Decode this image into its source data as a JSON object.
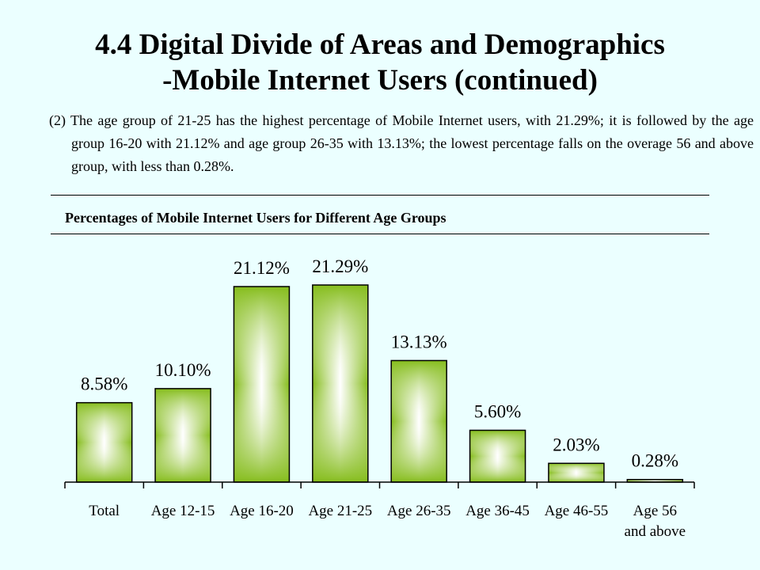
{
  "page": {
    "title_line1": "4.4 Digital Divide of Areas and Demographics",
    "title_line2": "-Mobile Internet Users (continued)",
    "description": "(2) The age group of 21-25 has the highest percentage of Mobile Internet users, with 21.29%; it is followed by the age group 16-20 with 21.12% and age group 26-35 with 13.13%; the lowest percentage falls on the overage 56 and above group, with less than 0.28%."
  },
  "chart_data": {
    "type": "bar",
    "title": "Percentages of Mobile Internet Users for Different Age Groups",
    "categories": [
      "Total",
      "Age 12-15",
      "Age 16-20",
      "Age 21-25",
      "Age 26-35",
      "Age 36-45",
      "Age 46-55",
      "Age 56 and above"
    ],
    "category_lines": [
      [
        "Total"
      ],
      [
        "Age 12-15"
      ],
      [
        "Age 16-20"
      ],
      [
        "Age 21-25"
      ],
      [
        "Age 26-35"
      ],
      [
        "Age 36-45"
      ],
      [
        "Age 46-55"
      ],
      [
        "Age 56",
        "and above"
      ]
    ],
    "values": [
      8.58,
      10.1,
      21.12,
      21.29,
      13.13,
      5.6,
      2.03,
      0.28
    ],
    "value_labels": [
      "8.58%",
      "10.10%",
      "21.12%",
      "21.29%",
      "13.13%",
      "5.60%",
      "2.03%",
      "0.28%"
    ],
    "xlabel": "",
    "ylabel": "",
    "ylim": [
      0,
      21.29
    ],
    "grid": false,
    "colors": {
      "bar_edge": "#7fb51a",
      "bar_center": "#ffffff",
      "bar_mid": "#c9e65a"
    }
  }
}
